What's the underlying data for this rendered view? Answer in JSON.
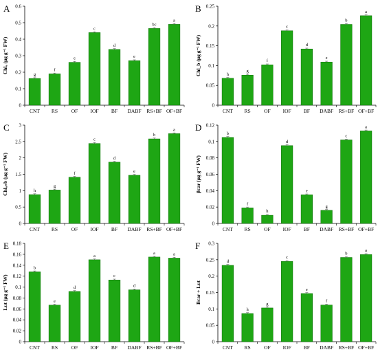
{
  "figure": {
    "categories": [
      "CNT",
      "RS",
      "OF",
      "IOF",
      "BF",
      "DABF",
      "RS+BF",
      "OF+BF"
    ],
    "bar_color": "#1ea614",
    "bar_edge_color": "#0f6e0a"
  },
  "chart_data": [
    {
      "panel": "A",
      "type": "bar",
      "ylabel": "Chlₐ (μg g⁻¹ FW)",
      "ylim": [
        0,
        0.6
      ],
      "yticks": [
        0,
        0.1,
        0.2,
        0.3,
        0.4,
        0.5,
        0.6
      ],
      "yticklabels": [
        "0",
        "0.1",
        "0.2",
        "0.3",
        "0.4",
        "0.5",
        "0.6"
      ],
      "categories": [
        "CNT",
        "RS",
        "OF",
        "IOF",
        "BF",
        "DABF",
        "RS+BF",
        "OF+BF"
      ],
      "values": [
        0.162,
        0.19,
        0.26,
        0.44,
        0.338,
        0.27,
        0.465,
        0.49
      ],
      "letters": [
        "g",
        "f",
        "e",
        "c",
        "d",
        "e",
        "bc",
        "a"
      ]
    },
    {
      "panel": "B",
      "type": "bar",
      "ylabel": "Chl_b (μg g⁻¹ FW)",
      "ylim": [
        0,
        0.25
      ],
      "yticks": [
        0,
        0.05,
        0.1,
        0.15,
        0.2,
        0.25
      ],
      "yticklabels": [
        "0",
        "0.05",
        "0.1",
        "0.15",
        "0.2",
        "0.25"
      ],
      "categories": [
        "CNT",
        "RS",
        "OF",
        "IOF",
        "BF",
        "DABF",
        "RS+BF",
        "OF+BF"
      ],
      "values": [
        0.068,
        0.076,
        0.102,
        0.188,
        0.142,
        0.109,
        0.204,
        0.226
      ],
      "letters": [
        "h",
        "g",
        "f",
        "c",
        "d",
        "e",
        "b",
        "a"
      ]
    },
    {
      "panel": "C",
      "type": "bar",
      "ylabel": "Chlₐ₊b (μg g⁻¹ FW)",
      "ylim": [
        0,
        3
      ],
      "yticks": [
        0,
        0.5,
        1,
        1.5,
        2,
        2.5,
        3
      ],
      "yticklabels": [
        "0",
        "0.5",
        "1",
        "1.5",
        "2",
        "2.5",
        "3"
      ],
      "categories": [
        "CNT",
        "RS",
        "OF",
        "IOF",
        "BF",
        "DABF",
        "RS+BF",
        "OF+BF"
      ],
      "values": [
        0.88,
        1.02,
        1.41,
        2.44,
        1.87,
        1.47,
        2.58,
        2.74
      ],
      "letters": [
        "h",
        "g",
        "f",
        "c",
        "d",
        "e",
        "b",
        "a"
      ]
    },
    {
      "panel": "D",
      "type": "bar",
      "ylabel": "βcar (μg g⁻¹ FW)",
      "ylim": [
        0,
        0.12
      ],
      "yticks": [
        0,
        0.02,
        0.04,
        0.06,
        0.08,
        0.1,
        0.12
      ],
      "yticklabels": [
        "0",
        "0.02",
        "0.04",
        "0.06",
        "0.08",
        "0.1",
        "0.12"
      ],
      "categories": [
        "CNT",
        "RS",
        "OF",
        "IOF",
        "BF",
        "DABF",
        "RS+BF",
        "OF+BF"
      ],
      "values": [
        0.105,
        0.019,
        0.01,
        0.095,
        0.035,
        0.016,
        0.102,
        0.113
      ],
      "letters": [
        "b",
        "f",
        "h",
        "d",
        "e",
        "g",
        "c",
        "a"
      ]
    },
    {
      "panel": "E",
      "type": "bar",
      "ylabel": "Lut (μg g⁻¹ FW)",
      "ylim": [
        0,
        0.18
      ],
      "yticks": [
        0,
        0.02,
        0.04,
        0.06,
        0.08,
        0.1,
        0.12,
        0.14,
        0.16,
        0.18
      ],
      "yticklabels": [
        "0",
        "0.02",
        "0.04",
        "0.06",
        "0.08",
        "0.1",
        "0.12",
        "0.14",
        "0.16",
        "0.18"
      ],
      "categories": [
        "CNT",
        "RS",
        "OF",
        "IOF",
        "BF",
        "DABF",
        "RS+BF",
        "OF+BF"
      ],
      "values": [
        0.128,
        0.067,
        0.092,
        0.15,
        0.113,
        0.095,
        0.155,
        0.153
      ],
      "letters": [
        "b",
        "e",
        "d",
        "a",
        "c",
        "d",
        "a",
        "a"
      ]
    },
    {
      "panel": "F",
      "type": "bar",
      "ylabel": "Bcar + Lut",
      "ylim": [
        0,
        0.3
      ],
      "yticks": [
        0,
        0.05,
        0.1,
        0.15,
        0.2,
        0.25,
        0.3
      ],
      "yticklabels": [
        "0",
        "0.05",
        "0.1",
        "0.15",
        "0.2",
        "0.25",
        "0.3"
      ],
      "categories": [
        "CNT",
        "RS",
        "OF",
        "IOF",
        "BF",
        "DABF",
        "RS+BF",
        "OF+BF"
      ],
      "values": [
        0.233,
        0.086,
        0.103,
        0.245,
        0.147,
        0.112,
        0.257,
        0.266
      ],
      "letters": [
        "d",
        "h",
        "g",
        "c",
        "e",
        "f",
        "b",
        "a"
      ]
    }
  ]
}
